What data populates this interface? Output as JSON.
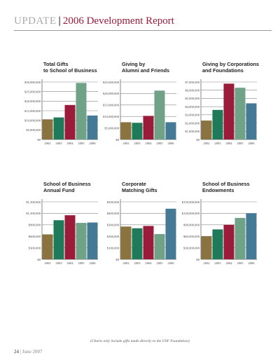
{
  "header": {
    "section": "UPDATE",
    "title": "2006 Development Report"
  },
  "footnote": "(Charts only include gifts made directly to the USF Foundation)",
  "footer": {
    "page": "24",
    "date": "June 2007"
  },
  "colors": [
    "#8b7340",
    "#1e7a58",
    "#9b1b3a",
    "#6fa287",
    "#457a96"
  ],
  "chart_data": [
    {
      "type": "bar",
      "title": "Total Gifts\nto School of Business",
      "categories": [
        "2002",
        "2003",
        "2004",
        "2005",
        "2006"
      ],
      "values": [
        10500000,
        11500000,
        18000000,
        29500000,
        12500000
      ],
      "ylim": [
        0,
        30000000
      ],
      "yticks": [
        "$0",
        "$5,000,000",
        "$10,000,000",
        "$15,000,000",
        "$20,000,000",
        "$25,000,000",
        "$30,000,000"
      ],
      "xlabel": "",
      "ylabel": "",
      "grid": true
    },
    {
      "type": "bar",
      "title": "Giving by\nAlumni and Friends",
      "categories": [
        "2002",
        "2003",
        "2004",
        "2005",
        "2006"
      ],
      "values": [
        6000000,
        5800000,
        8200000,
        17000000,
        6000000
      ],
      "ylim": [
        0,
        20000000
      ],
      "yticks": [
        "$0",
        "$5,000,000",
        "$10,000,000",
        "$15,000,000",
        "$20,000,000",
        "$25,000,000"
      ],
      "xlabel": "",
      "ylabel": "",
      "grid": true
    },
    {
      "type": "bar",
      "title": "Giving by Corporations\nand Foundations",
      "categories": [
        "2002",
        "2003",
        "2004",
        "2005",
        "2006"
      ],
      "values": [
        2300000,
        3600000,
        6800000,
        6300000,
        4400000
      ],
      "ylim": [
        0,
        7000000
      ],
      "yticks": [
        "$0",
        "$1,000,000",
        "$2,000,000",
        "$3,000,000",
        "$4,000,000",
        "$5,000,000",
        "$6,000,000",
        "$7,000,000"
      ],
      "xlabel": "",
      "ylabel": "",
      "grid": true
    },
    {
      "type": "bar",
      "title": "School of Business\nAnnual Fund",
      "categories": [
        "2002",
        "2003",
        "2004",
        "2005",
        "2006"
      ],
      "values": [
        650000,
        1020000,
        1150000,
        950000,
        960000
      ],
      "ylim": [
        0,
        1500000
      ],
      "yticks": [
        "$0",
        "$300,000",
        "$600,000",
        "$900,000",
        "$1,200,000",
        "$1,500,000"
      ],
      "xlabel": "",
      "ylabel": "",
      "grid": true
    },
    {
      "type": "bar",
      "title": "Corporate\nMatching Gifts",
      "categories": [
        "2002",
        "2003",
        "2004",
        "2005",
        "2006"
      ],
      "values": [
        285000,
        270000,
        290000,
        220000,
        440000
      ],
      "ylim": [
        0,
        500000
      ],
      "yticks": [
        "$0",
        "$100,000",
        "$200,000",
        "$300,000",
        "$400,000",
        "$500,000"
      ],
      "xlabel": "",
      "ylabel": "",
      "grid": true
    },
    {
      "type": "bar",
      "title": "School of Business\nEndowments",
      "categories": [
        "2002",
        "2003",
        "2004",
        "2005",
        "2006"
      ],
      "values": [
        60000000,
        78000000,
        90000000,
        108000000,
        120000000
      ],
      "ylim": [
        0,
        150000000
      ],
      "yticks": [
        "$0",
        "$30,000,000",
        "$60,000,000",
        "$90,000,000",
        "$120,000,000",
        "$150,000,000"
      ],
      "xlabel": "",
      "ylabel": "",
      "grid": true
    }
  ]
}
